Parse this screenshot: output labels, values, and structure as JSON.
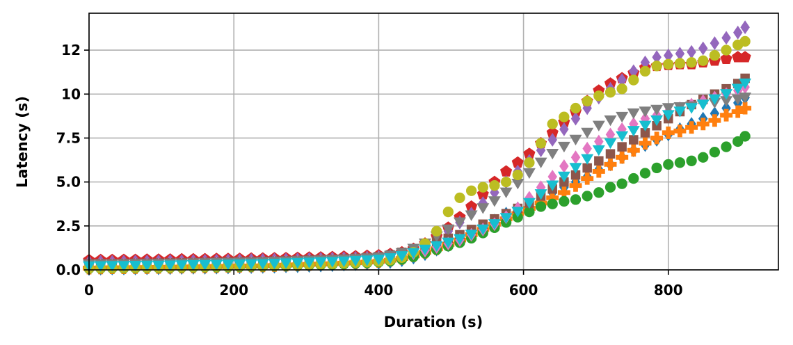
{
  "chart_data": {
    "type": "scatter",
    "title": "",
    "xlabel": "Duration (s)",
    "ylabel": "Latency (s)",
    "xlim": [
      0,
      952
    ],
    "ylim": [
      0,
      14.6
    ],
    "xticks": [
      0,
      200,
      400,
      600,
      800
    ],
    "yticks": [
      0.0,
      2.5,
      5.0,
      7.5,
      10.0,
      12.5
    ],
    "ytick_labels": [
      "0.0",
      "2.5",
      "5.0",
      "7.5",
      "10",
      "12"
    ],
    "grid": true,
    "legend": "none",
    "x": [
      0,
      16,
      32,
      48,
      64,
      80,
      96,
      112,
      128,
      144,
      160,
      176,
      192,
      208,
      224,
      240,
      256,
      272,
      288,
      304,
      320,
      336,
      352,
      368,
      384,
      400,
      416,
      432,
      448,
      464,
      480,
      496,
      512,
      528,
      544,
      560,
      576,
      592,
      608,
      624,
      640,
      656,
      672,
      688,
      704,
      720,
      736,
      752,
      768,
      784,
      800,
      816,
      832,
      848,
      864,
      880,
      896,
      906
    ],
    "series": [
      {
        "marker": "diamond",
        "color": "#1f77b4",
        "values": [
          0.05,
          0.07,
          0.08,
          0.08,
          0.08,
          0.09,
          0.09,
          0.1,
          0.11,
          0.12,
          0.12,
          0.13,
          0.14,
          0.15,
          0.16,
          0.17,
          0.18,
          0.2,
          0.21,
          0.23,
          0.25,
          0.27,
          0.3,
          0.33,
          0.36,
          0.4,
          0.45,
          0.55,
          0.7,
          0.9,
          1.15,
          1.4,
          1.7,
          2.0,
          2.4,
          2.8,
          3.2,
          3.5,
          3.8,
          4.1,
          4.4,
          4.7,
          5.0,
          5.3,
          5.7,
          6.0,
          6.4,
          6.8,
          7.1,
          7.4,
          7.7,
          8.0,
          8.3,
          8.6,
          8.9,
          9.2,
          9.5,
          9.8
        ]
      },
      {
        "marker": "plus",
        "color": "#ff7f0e",
        "values": [
          0.1,
          0.11,
          0.12,
          0.12,
          0.13,
          0.13,
          0.14,
          0.15,
          0.16,
          0.17,
          0.18,
          0.19,
          0.2,
          0.21,
          0.22,
          0.23,
          0.25,
          0.27,
          0.29,
          0.31,
          0.33,
          0.35,
          0.38,
          0.41,
          0.44,
          0.48,
          0.55,
          0.65,
          0.8,
          1.0,
          1.2,
          1.45,
          1.7,
          2.0,
          2.3,
          2.6,
          2.9,
          3.2,
          3.5,
          3.8,
          4.1,
          4.4,
          4.8,
          5.2,
          5.6,
          6.0,
          6.4,
          6.8,
          7.2,
          7.5,
          7.8,
          7.9,
          8.1,
          8.3,
          8.5,
          8.8,
          9.0,
          9.2
        ]
      },
      {
        "marker": "circle",
        "color": "#2ca02c",
        "values": [
          0.08,
          0.09,
          0.1,
          0.1,
          0.11,
          0.12,
          0.12,
          0.13,
          0.14,
          0.15,
          0.16,
          0.16,
          0.17,
          0.18,
          0.19,
          0.2,
          0.22,
          0.23,
          0.25,
          0.27,
          0.29,
          0.31,
          0.34,
          0.37,
          0.4,
          0.44,
          0.5,
          0.6,
          0.75,
          0.95,
          1.15,
          1.35,
          1.55,
          1.8,
          2.1,
          2.4,
          2.7,
          3.0,
          3.3,
          3.6,
          3.75,
          3.9,
          4.0,
          4.2,
          4.4,
          4.7,
          4.9,
          5.2,
          5.5,
          5.8,
          6.0,
          6.1,
          6.2,
          6.4,
          6.7,
          7.0,
          7.3,
          7.6
        ]
      },
      {
        "marker": "pentagon",
        "color": "#d62728",
        "values": [
          0.55,
          0.56,
          0.56,
          0.57,
          0.57,
          0.58,
          0.58,
          0.59,
          0.6,
          0.6,
          0.61,
          0.62,
          0.62,
          0.63,
          0.64,
          0.65,
          0.66,
          0.67,
          0.68,
          0.7,
          0.71,
          0.73,
          0.75,
          0.77,
          0.8,
          0.83,
          0.9,
          1.0,
          1.2,
          1.5,
          1.9,
          2.4,
          3.0,
          3.6,
          4.3,
          5.0,
          5.6,
          6.1,
          6.6,
          7.2,
          7.8,
          8.4,
          9.0,
          9.6,
          10.2,
          10.6,
          10.9,
          11.2,
          11.5,
          11.6,
          11.65,
          11.7,
          11.7,
          11.8,
          11.9,
          12.0,
          12.1,
          12.1
        ]
      },
      {
        "marker": "diamond",
        "color": "#9467bd",
        "values": [
          0.45,
          0.46,
          0.46,
          0.47,
          0.48,
          0.48,
          0.49,
          0.5,
          0.5,
          0.51,
          0.52,
          0.53,
          0.54,
          0.55,
          0.56,
          0.57,
          0.58,
          0.59,
          0.6,
          0.62,
          0.63,
          0.65,
          0.67,
          0.69,
          0.71,
          0.74,
          0.8,
          0.9,
          1.05,
          1.3,
          1.7,
          2.2,
          2.7,
          3.2,
          3.8,
          4.4,
          5.0,
          5.6,
          6.2,
          6.8,
          7.4,
          8.0,
          8.6,
          9.2,
          9.8,
          10.3,
          10.8,
          11.3,
          11.8,
          12.1,
          12.2,
          12.3,
          12.4,
          12.6,
          12.9,
          13.2,
          13.5,
          13.8
        ]
      },
      {
        "marker": "square",
        "color": "#8c564b",
        "values": [
          0.35,
          0.36,
          0.36,
          0.37,
          0.38,
          0.38,
          0.39,
          0.4,
          0.41,
          0.42,
          0.43,
          0.44,
          0.45,
          0.46,
          0.47,
          0.48,
          0.5,
          0.52,
          0.54,
          0.56,
          0.58,
          0.6,
          0.63,
          0.66,
          0.7,
          0.75,
          0.85,
          1.0,
          1.2,
          1.4,
          1.6,
          1.8,
          2.0,
          2.3,
          2.6,
          2.9,
          3.2,
          3.5,
          3.8,
          4.2,
          4.6,
          5.0,
          5.4,
          5.8,
          6.2,
          6.6,
          7.0,
          7.4,
          7.8,
          8.2,
          8.6,
          9.0,
          9.4,
          9.7,
          10.0,
          10.3,
          10.6,
          10.9
        ]
      },
      {
        "marker": "diamond",
        "color": "#e377c2",
        "values": [
          0.25,
          0.26,
          0.26,
          0.27,
          0.28,
          0.28,
          0.29,
          0.3,
          0.31,
          0.32,
          0.33,
          0.34,
          0.35,
          0.36,
          0.37,
          0.38,
          0.4,
          0.42,
          0.44,
          0.46,
          0.48,
          0.5,
          0.53,
          0.56,
          0.6,
          0.65,
          0.72,
          0.82,
          0.95,
          1.1,
          1.3,
          1.5,
          1.7,
          2.0,
          2.3,
          2.6,
          3.0,
          3.5,
          4.1,
          4.7,
          5.3,
          5.9,
          6.4,
          6.9,
          7.3,
          7.7,
          8.0,
          8.3,
          8.6,
          8.8,
          9.0,
          9.2,
          9.4,
          9.6,
          9.8,
          10.0,
          10.2,
          10.4
        ]
      },
      {
        "marker": "triangle-down",
        "color": "#7f7f7f",
        "values": [
          0.3,
          0.31,
          0.31,
          0.32,
          0.33,
          0.33,
          0.34,
          0.35,
          0.36,
          0.37,
          0.38,
          0.39,
          0.4,
          0.41,
          0.42,
          0.43,
          0.45,
          0.47,
          0.49,
          0.51,
          0.53,
          0.55,
          0.58,
          0.61,
          0.65,
          0.7,
          0.8,
          0.95,
          1.2,
          1.5,
          1.9,
          2.3,
          2.7,
          3.1,
          3.5,
          3.9,
          4.4,
          4.9,
          5.5,
          6.1,
          6.6,
          7.0,
          7.4,
          7.8,
          8.2,
          8.5,
          8.7,
          8.9,
          9.0,
          9.1,
          9.2,
          9.25,
          9.3,
          9.4,
          9.5,
          9.6,
          9.7,
          9.8
        ]
      },
      {
        "marker": "circle",
        "color": "#bcbd22",
        "values": [
          0.1,
          0.11,
          0.12,
          0.12,
          0.13,
          0.14,
          0.14,
          0.15,
          0.16,
          0.17,
          0.18,
          0.19,
          0.2,
          0.21,
          0.22,
          0.23,
          0.25,
          0.27,
          0.29,
          0.31,
          0.33,
          0.35,
          0.38,
          0.41,
          0.44,
          0.48,
          0.56,
          0.7,
          1.0,
          1.5,
          2.2,
          3.3,
          4.1,
          4.5,
          4.7,
          4.8,
          5.0,
          5.4,
          6.1,
          7.2,
          8.3,
          8.7,
          9.2,
          9.6,
          9.9,
          10.1,
          10.3,
          10.8,
          11.3,
          11.6,
          11.7,
          11.75,
          11.8,
          11.9,
          12.2,
          12.5,
          12.8,
          13.0
        ]
      },
      {
        "marker": "triangle-down",
        "color": "#17becf",
        "values": [
          0.2,
          0.21,
          0.22,
          0.22,
          0.23,
          0.24,
          0.24,
          0.25,
          0.26,
          0.27,
          0.28,
          0.29,
          0.3,
          0.31,
          0.32,
          0.33,
          0.35,
          0.37,
          0.39,
          0.41,
          0.43,
          0.45,
          0.48,
          0.51,
          0.54,
          0.58,
          0.66,
          0.78,
          0.95,
          1.15,
          1.35,
          1.55,
          1.75,
          2.0,
          2.3,
          2.6,
          2.95,
          3.3,
          3.8,
          4.3,
          4.8,
          5.3,
          5.8,
          6.3,
          6.8,
          7.2,
          7.6,
          7.9,
          8.2,
          8.5,
          8.8,
          9.0,
          9.2,
          9.4,
          9.7,
          10.0,
          10.3,
          10.6
        ]
      }
    ]
  }
}
